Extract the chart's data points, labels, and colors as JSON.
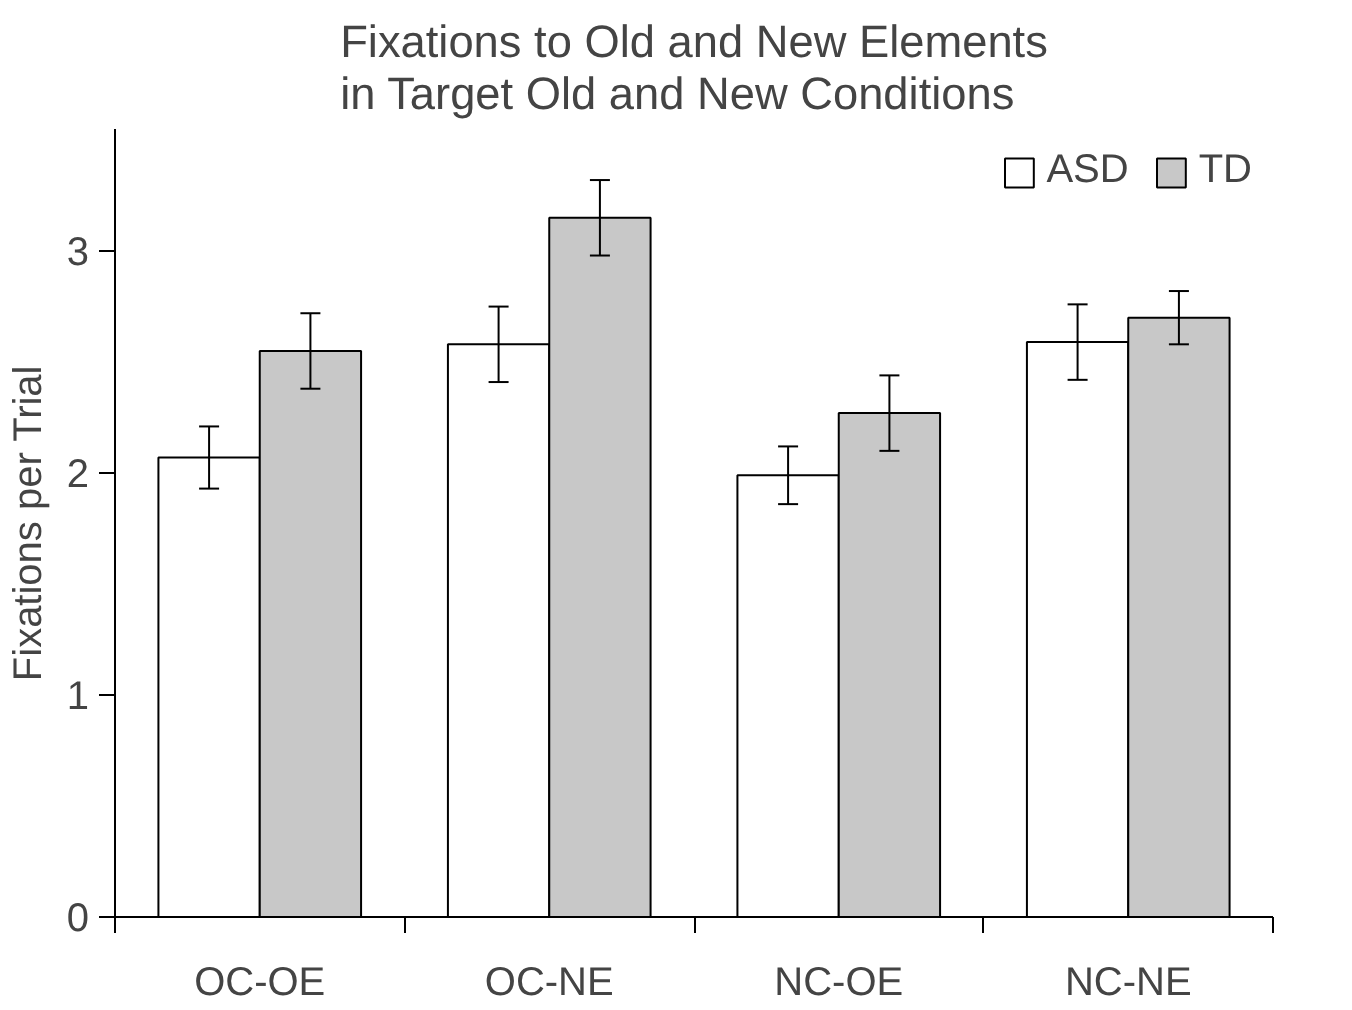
{
  "chart_data": {
    "type": "bar",
    "title": "Fixations to Old and New Elements\nin Target Old and New Conditions",
    "ylabel": "Fixations per Trial",
    "categories": [
      "OC-OE",
      "OC-NE",
      "NC-OE",
      "NC-NE"
    ],
    "series": [
      {
        "name": "ASD",
        "color": "#ffffff",
        "values": [
          2.07,
          2.58,
          1.99,
          2.59
        ],
        "errors": [
          0.14,
          0.17,
          0.13,
          0.17
        ]
      },
      {
        "name": "TD",
        "color": "#c8c8c8",
        "values": [
          2.55,
          3.15,
          2.27,
          2.7
        ],
        "errors": [
          0.17,
          0.17,
          0.17,
          0.12
        ]
      }
    ],
    "ylim": [
      0,
      3.55
    ],
    "yticks": [
      0,
      1,
      2,
      3
    ],
    "grid": false,
    "legend": "top right"
  }
}
